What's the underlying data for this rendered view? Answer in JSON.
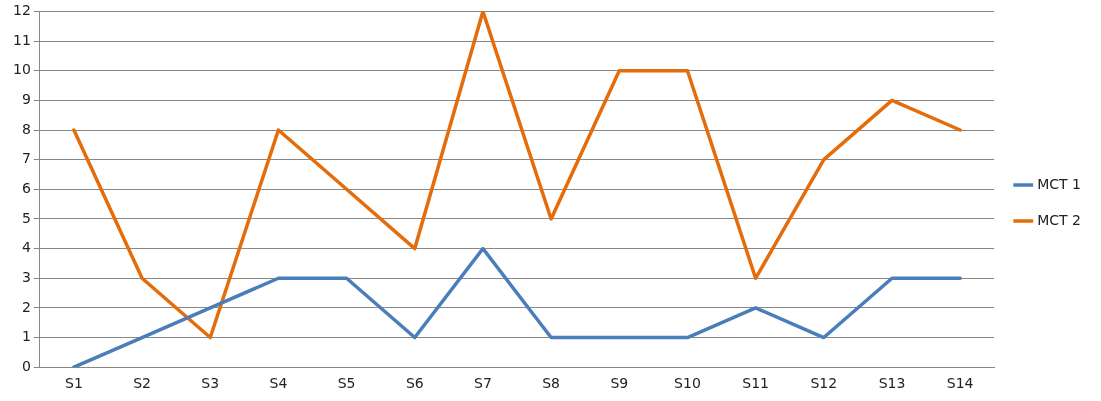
{
  "chart_data": {
    "type": "line",
    "categories": [
      "S1",
      "S2",
      "S3",
      "S4",
      "S5",
      "S6",
      "S7",
      "S8",
      "S9",
      "S10",
      "S11",
      "S12",
      "S13",
      "S14"
    ],
    "series": [
      {
        "name": "MCT 1",
        "color": "#4a7ebb",
        "values": [
          0,
          1,
          2,
          3,
          3,
          1,
          4,
          1,
          1,
          1,
          2,
          1,
          3,
          3
        ]
      },
      {
        "name": "MCT 2",
        "color": "#e46c0a",
        "values": [
          8,
          3,
          1,
          8,
          6,
          4,
          12,
          5,
          10,
          10,
          3,
          7,
          9,
          8
        ]
      }
    ],
    "ylim": [
      0,
      12
    ],
    "yticks": [
      0,
      1,
      2,
      3,
      4,
      5,
      6,
      7,
      8,
      9,
      10,
      11,
      12
    ],
    "grid": "y",
    "legend": "right",
    "marker": "none",
    "line_style": "solid"
  }
}
